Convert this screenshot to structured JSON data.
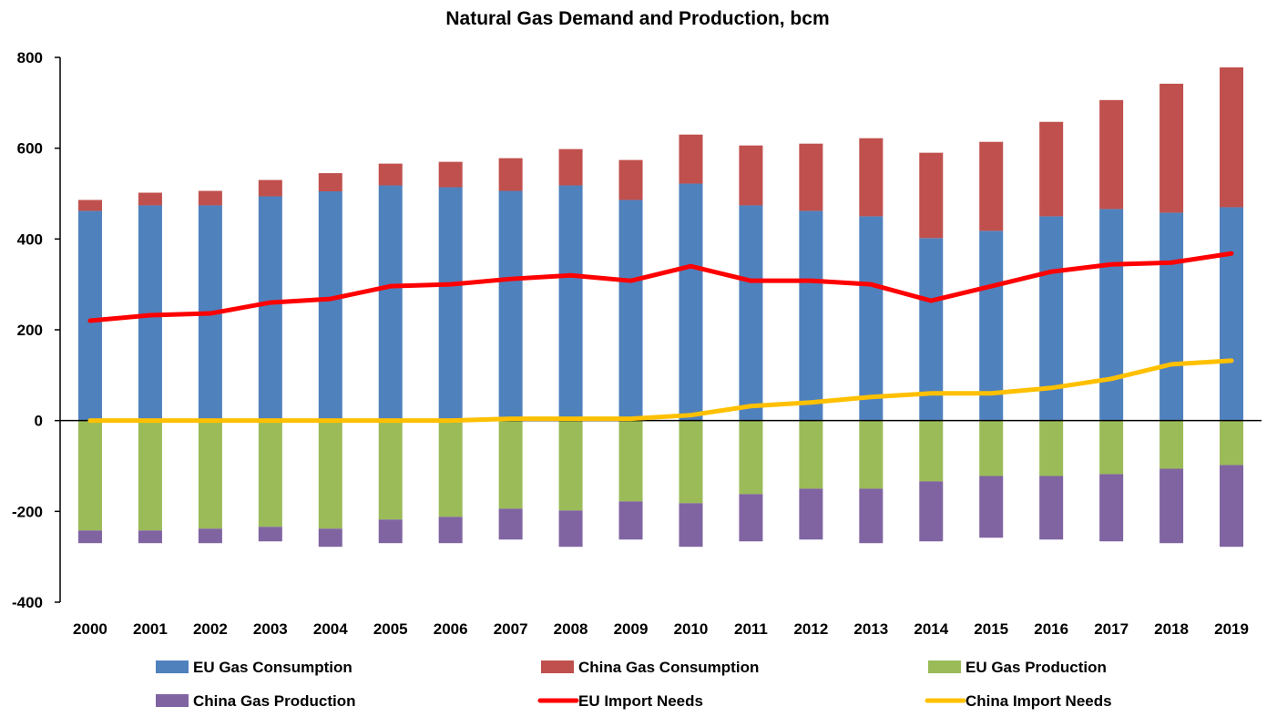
{
  "chart_data": {
    "type": "bar",
    "title": "Natural Gas Demand and Production, bcm",
    "xlabel": "",
    "ylabel": "",
    "ylim": [
      -400,
      800
    ],
    "yticks": [
      800,
      600,
      400,
      200,
      0,
      -200,
      -400
    ],
    "ytick_labels": [
      "800",
      "600",
      "400",
      "200",
      "0",
      "-200",
      "-400"
    ],
    "grid": false,
    "legend_position": "bottom",
    "categories": [
      "2000",
      "2001",
      "2002",
      "2003",
      "2004",
      "2005",
      "2006",
      "2007",
      "2008",
      "2009",
      "2010",
      "2011",
      "2012",
      "2013",
      "2014",
      "2015",
      "2016",
      "2017",
      "2018",
      "2019"
    ],
    "series": [
      {
        "name": "EU Gas Consumption",
        "kind": "bar",
        "color": "#4F81BD",
        "values": [
          462,
          474,
          474,
          494,
          505,
          518,
          514,
          506,
          518,
          486,
          522,
          474,
          462,
          450,
          402,
          418,
          450,
          466,
          458,
          470
        ]
      },
      {
        "name": "China Gas Consumption",
        "kind": "bar",
        "color": "#C0504D",
        "values": [
          24,
          28,
          32,
          36,
          40,
          48,
          56,
          72,
          80,
          88,
          108,
          132,
          148,
          172,
          188,
          196,
          208,
          240,
          284,
          308
        ]
      },
      {
        "name": "EU Gas Production",
        "kind": "bar",
        "color": "#9BBB59",
        "values": [
          -242,
          -242,
          -238,
          -234,
          -238,
          -218,
          -212,
          -194,
          -198,
          -178,
          -182,
          -162,
          -150,
          -150,
          -134,
          -122,
          -122,
          -118,
          -106,
          -98
        ]
      },
      {
        "name": "China Gas Production",
        "kind": "bar",
        "color": "#8064A2",
        "values": [
          -28,
          -28,
          -32,
          -32,
          -40,
          -52,
          -58,
          -68,
          -80,
          -84,
          -96,
          -104,
          -112,
          -120,
          -132,
          -136,
          -140,
          -148,
          -164,
          -180
        ]
      },
      {
        "name": "EU Import Needs",
        "kind": "line",
        "color": "#FF0000",
        "values": [
          220,
          232,
          236,
          260,
          268,
          296,
          300,
          312,
          320,
          308,
          340,
          308,
          308,
          300,
          264,
          296,
          328,
          344,
          348,
          368
        ]
      },
      {
        "name": "China Import Needs",
        "kind": "line",
        "color": "#FFC000",
        "values": [
          0,
          0,
          0,
          0,
          0,
          0,
          0,
          4,
          4,
          4,
          12,
          32,
          40,
          52,
          60,
          60,
          72,
          92,
          124,
          132
        ]
      }
    ]
  }
}
